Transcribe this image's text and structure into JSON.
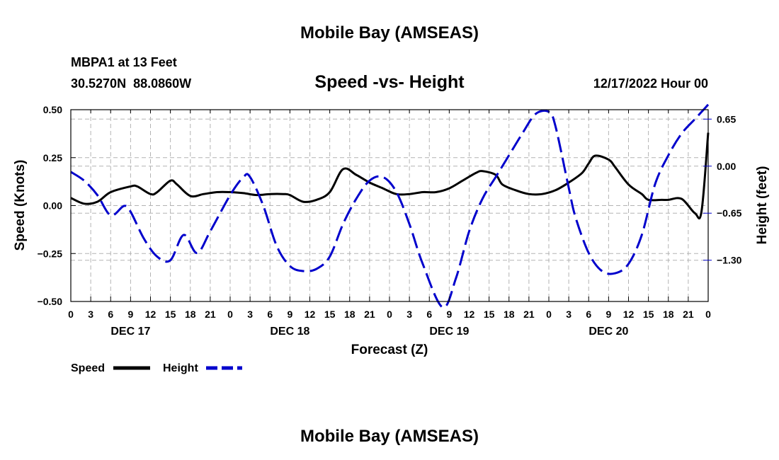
{
  "page": {
    "title": "Mobile Bay (AMSEAS)",
    "footer_title": "Mobile Bay (AMSEAS)"
  },
  "header": {
    "station": "MBPA1 at 13 Feet",
    "coords": "30.5270N  88.0860W",
    "timestamp": "12/17/2022 Hour 00"
  },
  "legend": {
    "speed_label": "Speed",
    "height_label": "Height"
  },
  "colors": {
    "speed": "#000000",
    "height": "#0000cc",
    "grid": "#b3b3b3"
  },
  "chart_data": {
    "type": "line",
    "title": "Speed -vs- Height",
    "xlabel": "Forecast (Z)",
    "ylabel": "Speed (Knots)",
    "y2label": "Height (feet)",
    "xlim": [
      0,
      96
    ],
    "ylim": [
      -0.5,
      0.5
    ],
    "y2lim": [
      -1.87,
      0.78
    ],
    "x_tick_step": 3,
    "x_tick_labels": [
      "0",
      "3",
      "6",
      "9",
      "12",
      "15",
      "18",
      "21",
      "0",
      "3",
      "6",
      "9",
      "12",
      "15",
      "18",
      "21",
      "0",
      "3",
      "6",
      "9",
      "12",
      "15",
      "18",
      "21",
      "0",
      "3",
      "6",
      "9",
      "12",
      "15",
      "18",
      "21",
      "0"
    ],
    "y_ticks": [
      -0.5,
      -0.25,
      0,
      0.25,
      0.5
    ],
    "y_tick_labels": [
      "−0.50",
      "−0.25",
      "0.00",
      "0.25",
      "0.50"
    ],
    "y2_ticks": [
      -1.3,
      -0.65,
      0,
      0.65
    ],
    "y2_tick_labels": [
      "−1.30",
      "−0.65",
      "0.00",
      "0.65"
    ],
    "day_labels": [
      {
        "x": 9,
        "label": "DEC 17"
      },
      {
        "x": 33,
        "label": "DEC 18"
      },
      {
        "x": 57,
        "label": "DEC 19"
      },
      {
        "x": 81,
        "label": "DEC 20"
      }
    ],
    "series": [
      {
        "name": "Speed",
        "axis": "left",
        "style": "solid",
        "x": [
          0,
          2,
          4,
          6,
          9,
          10,
          12,
          13,
          15,
          16,
          18,
          20,
          22,
          24,
          26,
          28,
          30,
          32,
          33,
          35,
          37,
          39,
          41,
          43,
          45,
          47,
          49,
          51,
          53,
          55,
          57,
          59,
          61,
          62,
          64,
          65,
          67,
          69,
          71,
          73,
          75,
          77,
          78,
          79,
          81,
          82,
          84,
          86,
          87,
          89,
          90,
          92,
          94,
          95,
          96
        ],
        "values": [
          0.04,
          0.01,
          0.02,
          0.07,
          0.1,
          0.1,
          0.06,
          0.07,
          0.13,
          0.11,
          0.05,
          0.06,
          0.07,
          0.07,
          0.065,
          0.055,
          0.06,
          0.06,
          0.055,
          0.02,
          0.03,
          0.07,
          0.19,
          0.16,
          0.12,
          0.09,
          0.06,
          0.06,
          0.07,
          0.07,
          0.09,
          0.13,
          0.17,
          0.18,
          0.16,
          0.11,
          0.08,
          0.06,
          0.06,
          0.08,
          0.12,
          0.17,
          0.22,
          0.26,
          0.24,
          0.2,
          0.11,
          0.06,
          0.03,
          0.03,
          0.03,
          0.035,
          -0.04,
          -0.03,
          0.38
        ]
      },
      {
        "name": "Height",
        "axis": "right",
        "style": "dashed",
        "x": [
          0,
          2,
          4,
          6,
          8,
          9,
          11,
          13,
          15,
          17,
          19,
          21,
          24,
          26,
          27,
          29,
          31,
          33,
          35,
          37,
          39,
          41,
          43,
          45,
          47,
          49,
          51,
          53,
          56,
          58,
          60,
          62,
          64,
          66,
          68,
          70,
          72,
          73,
          75,
          76,
          78,
          80,
          82,
          84,
          86,
          88,
          90,
          92,
          94,
          95,
          96
        ],
        "values": [
          -0.08,
          -0.2,
          -0.4,
          -0.68,
          -0.55,
          -0.63,
          -1.0,
          -1.25,
          -1.3,
          -0.95,
          -1.2,
          -0.9,
          -0.4,
          -0.15,
          -0.15,
          -0.55,
          -1.1,
          -1.38,
          -1.45,
          -1.42,
          -1.25,
          -0.8,
          -0.45,
          -0.2,
          -0.15,
          -0.35,
          -0.8,
          -1.35,
          -1.95,
          -1.55,
          -0.9,
          -0.45,
          -0.15,
          0.15,
          0.45,
          0.72,
          0.75,
          0.55,
          -0.3,
          -0.7,
          -1.2,
          -1.45,
          -1.48,
          -1.35,
          -0.95,
          -0.25,
          0.15,
          0.45,
          0.65,
          0.75,
          0.85
        ]
      }
    ]
  }
}
